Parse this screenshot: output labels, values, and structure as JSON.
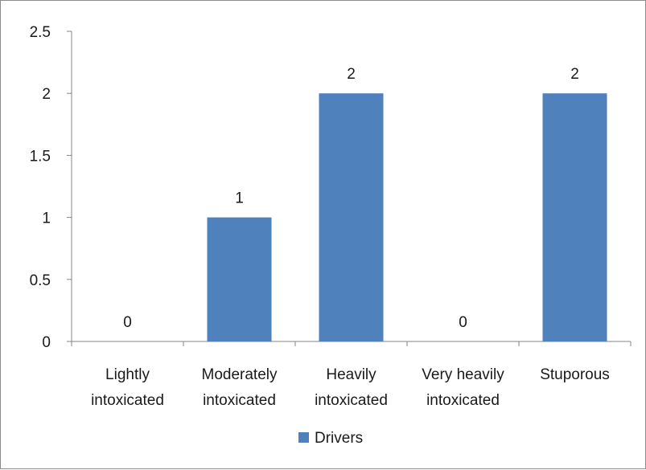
{
  "chart_data": {
    "type": "bar",
    "categories": [
      [
        "Lightly",
        "intoxicated"
      ],
      [
        "Moderately",
        "intoxicated"
      ],
      [
        "Heavily",
        "intoxicated"
      ],
      [
        "Very heavily",
        "intoxicated"
      ],
      [
        "Stuporous"
      ]
    ],
    "series": [
      {
        "name": "Drivers",
        "values": [
          0,
          1,
          2,
          0,
          2
        ],
        "color": "#4f81bd"
      }
    ],
    "ylim": [
      0,
      2.5
    ],
    "yticks": [
      "0",
      "0.5",
      "1",
      "1.5",
      "2",
      "2.5"
    ],
    "ytick_values": [
      0,
      0.5,
      1,
      1.5,
      2,
      2.5
    ],
    "data_labels": [
      "0",
      "1",
      "2",
      "0",
      "2"
    ],
    "grid": false,
    "legend_position": "bottom"
  }
}
